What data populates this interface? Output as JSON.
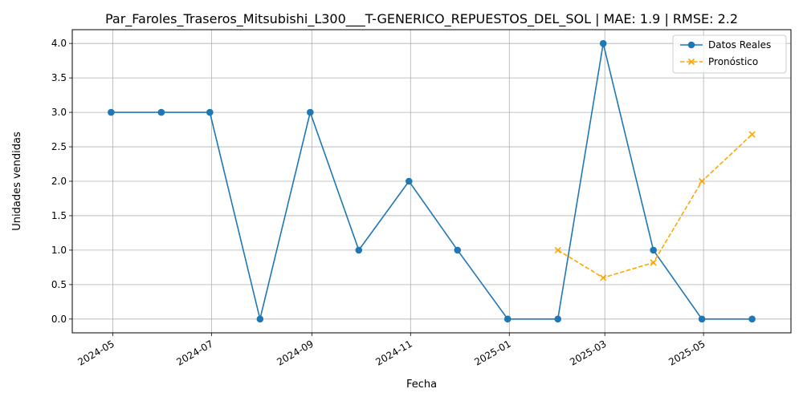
{
  "chart_data": {
    "type": "line",
    "title": "Par_Faroles_Traseros_Mitsubishi_L300___T-GENERICO_REPUESTOS_DEL_SOL | MAE: 1.9 | RMSE: 2.2",
    "xlabel": "Fecha",
    "ylabel": "Unidades vendidas",
    "ylim": [
      -0.2,
      4.2
    ],
    "xlim": [
      "2024-04-06",
      "2025-06-24"
    ],
    "grid": true,
    "legend_position": "top-right",
    "x_ticks": [
      "2024-05",
      "2024-07",
      "2024-09",
      "2024-11",
      "2025-01",
      "2025-03",
      "2025-05"
    ],
    "y_ticks": [
      0.0,
      0.5,
      1.0,
      1.5,
      2.0,
      2.5,
      3.0,
      3.5,
      4.0
    ],
    "y_tick_labels": [
      "0.0",
      "0.5",
      "1.0",
      "1.5",
      "2.0",
      "2.5",
      "3.0",
      "3.5",
      "4.0"
    ],
    "series": [
      {
        "name": "Datos Reales",
        "color": "#1f77b4",
        "style": "solid",
        "marker": "circle",
        "x": [
          "2024-04-30",
          "2024-05-31",
          "2024-06-30",
          "2024-07-31",
          "2024-08-31",
          "2024-09-30",
          "2024-10-31",
          "2024-11-30",
          "2024-12-31",
          "2025-01-31",
          "2025-02-28",
          "2025-03-31",
          "2025-04-30",
          "2025-05-31"
        ],
        "values": [
          3,
          3,
          3,
          0,
          3,
          1,
          2,
          1,
          0,
          0,
          4,
          1,
          0,
          0
        ]
      },
      {
        "name": "Pronóstico",
        "color": "#ffa500",
        "style": "dashed",
        "marker": "x",
        "x": [
          "2025-01-31",
          "2025-02-28",
          "2025-03-31",
          "2025-04-30",
          "2025-05-31"
        ],
        "values": [
          1.0,
          0.6,
          0.82,
          2.0,
          2.68
        ]
      }
    ]
  }
}
